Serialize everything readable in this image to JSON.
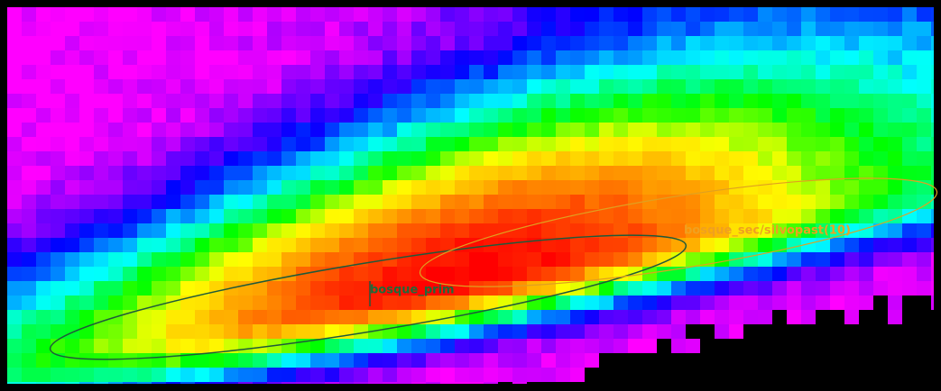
{
  "classes": [
    {
      "label": "bosque_prim"
    },
    {
      "label": "bosque_sec/silvopast(10)"
    }
  ]
}
